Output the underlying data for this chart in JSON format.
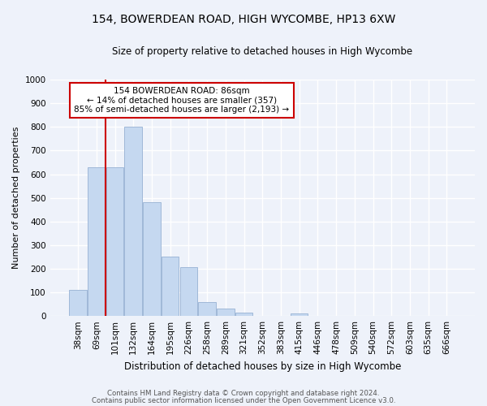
{
  "title": "154, BOWERDEAN ROAD, HIGH WYCOMBE, HP13 6XW",
  "subtitle": "Size of property relative to detached houses in High Wycombe",
  "xlabel": "Distribution of detached houses by size in High Wycombe",
  "ylabel": "Number of detached properties",
  "footer_line1": "Contains HM Land Registry data © Crown copyright and database right 2024.",
  "footer_line2": "Contains public sector information licensed under the Open Government Licence v3.0.",
  "bin_labels": [
    "38sqm",
    "69sqm",
    "101sqm",
    "132sqm",
    "164sqm",
    "195sqm",
    "226sqm",
    "258sqm",
    "289sqm",
    "321sqm",
    "352sqm",
    "383sqm",
    "415sqm",
    "446sqm",
    "478sqm",
    "509sqm",
    "540sqm",
    "572sqm",
    "603sqm",
    "635sqm",
    "666sqm"
  ],
  "bar_values": [
    110,
    630,
    630,
    800,
    480,
    250,
    205,
    60,
    30,
    15,
    0,
    0,
    10,
    0,
    0,
    0,
    0,
    0,
    0,
    0,
    0
  ],
  "bar_color": "#c5d8f0",
  "bar_edge_color": "#a0b8d8",
  "ylim": [
    0,
    1000
  ],
  "yticks": [
    0,
    100,
    200,
    300,
    400,
    500,
    600,
    700,
    800,
    900,
    1000
  ],
  "red_line_x": 1.5,
  "annotation_text_line1": "154 BOWERDEAN ROAD: 86sqm",
  "annotation_text_line2": "← 14% of detached houses are smaller (357)",
  "annotation_text_line3": "85% of semi-detached houses are larger (2,193) →",
  "annotation_box_color": "#ffffff",
  "annotation_border_color": "#cc0000",
  "background_color": "#eef2fa",
  "grid_color": "#ffffff",
  "title_fontsize": 10,
  "subtitle_fontsize": 8.5,
  "ylabel_fontsize": 8,
  "xlabel_fontsize": 8.5,
  "tick_fontsize": 7.5,
  "ann_fontsize": 7.5,
  "footer_fontsize": 6.2
}
